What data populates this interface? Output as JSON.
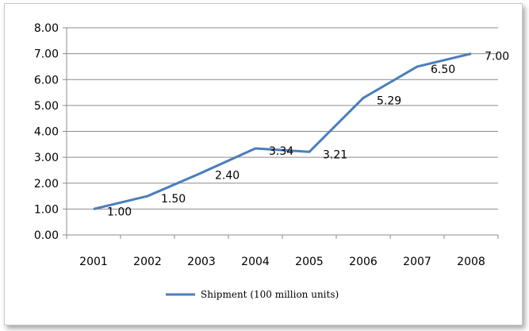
{
  "chart_data": {
    "type": "line",
    "categories": [
      "2001",
      "2002",
      "2003",
      "2004",
      "2005",
      "2006",
      "2007",
      "2008"
    ],
    "series": [
      {
        "name": "Shipment (100 million units)",
        "values": [
          1.0,
          1.5,
          2.4,
          3.34,
          3.21,
          5.29,
          6.5,
          7.0
        ],
        "data_labels": [
          "1.00",
          "1.50",
          "2.40",
          "3.34",
          "3.21",
          "5.29",
          "6.50",
          "7.00"
        ],
        "color": "#4a7ebb"
      }
    ],
    "y_ticks": [
      "0.00",
      "1.00",
      "2.00",
      "3.00",
      "4.00",
      "5.00",
      "6.00",
      "7.00",
      "8.00"
    ],
    "ylim": [
      0,
      8
    ],
    "grid": true,
    "legend_position": "bottom",
    "title": "",
    "xlabel": "",
    "ylabel": ""
  }
}
